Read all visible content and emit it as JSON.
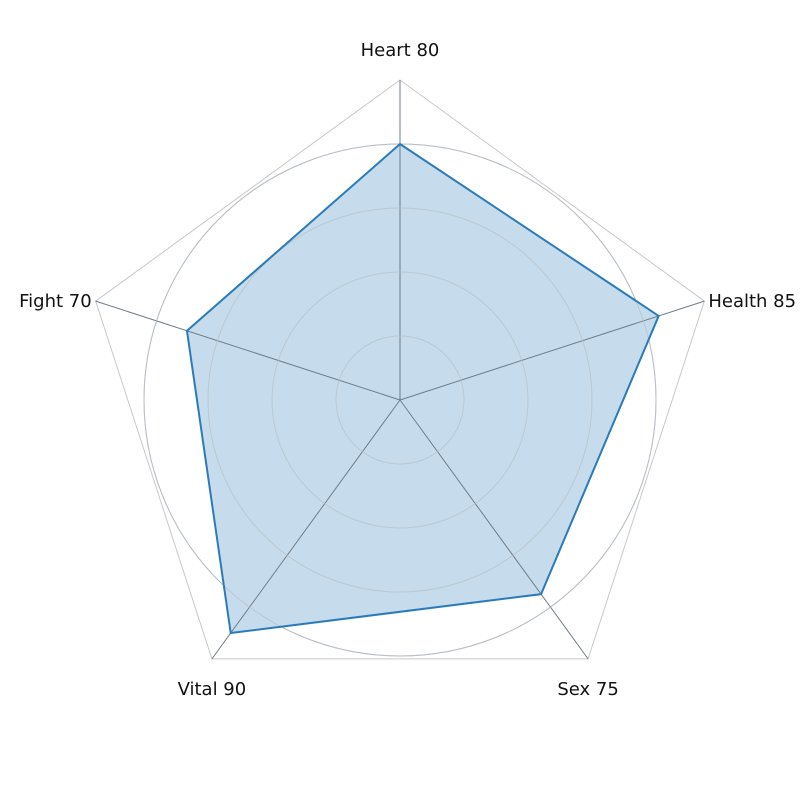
{
  "chart_data": {
    "type": "radar",
    "axes": [
      {
        "name": "Heart",
        "value": 80,
        "label": "Heart 80"
      },
      {
        "name": "Health",
        "value": 85,
        "label": "Health 85"
      },
      {
        "name": "Sex",
        "value": 75,
        "label": "Sex 75"
      },
      {
        "name": "Vital",
        "value": 90,
        "label": "Vital 90"
      },
      {
        "name": "Fight",
        "value": 70,
        "label": "Fight 70"
      }
    ],
    "series": [
      {
        "values": [
          80,
          85,
          75,
          90,
          70
        ]
      }
    ],
    "range": [
      0,
      100
    ],
    "rings": [
      20,
      40,
      60,
      80
    ],
    "grid": true,
    "colors": {
      "series_line": "#2b7bba",
      "series_fill": "#c6dcec",
      "outer_frame": "#c8c8c8",
      "rings": "#b8bfc6",
      "spokes": "#6f7d8a"
    }
  }
}
